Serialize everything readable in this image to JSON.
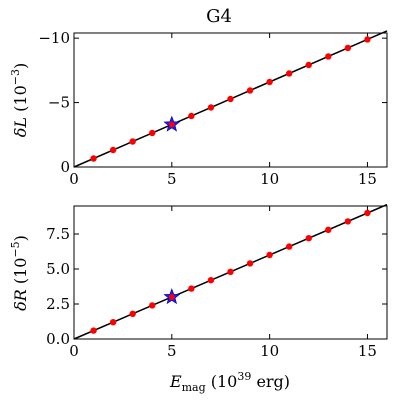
{
  "chart_data": [
    {
      "type": "scatter",
      "title": "G4",
      "ylabel": {
        "symbol": "δL",
        "scale": "10",
        "exponent": "−3"
      },
      "xlabel": "",
      "xlim": [
        0,
        16
      ],
      "ylim": [
        0,
        -10.4
      ],
      "y_inverted": true,
      "grid": false,
      "x_ticks": [
        0,
        5,
        10,
        15
      ],
      "x_tick_labels": [
        "0",
        "5",
        "10",
        "15"
      ],
      "y_ticks": [
        0,
        -5,
        -10
      ],
      "y_tick_labels": [
        "0",
        "−5",
        "−10"
      ],
      "series": [
        {
          "marker": "red-dot",
          "x": [
            1,
            2,
            3,
            4,
            5,
            6,
            7,
            8,
            9,
            10,
            11,
            12,
            13,
            14,
            15
          ],
          "y": [
            -0.66,
            -1.32,
            -1.98,
            -2.64,
            -3.3,
            -3.96,
            -4.62,
            -5.28,
            -5.94,
            -6.6,
            -7.26,
            -7.92,
            -8.58,
            -9.24,
            -9.9
          ]
        },
        {
          "marker": "blue-star",
          "x": [
            5
          ],
          "y": [
            -3.3
          ]
        },
        {
          "marker": "black-line",
          "x": [
            0,
            16
          ],
          "y": [
            0,
            -10.56
          ]
        }
      ]
    },
    {
      "type": "scatter",
      "title": "",
      "ylabel": {
        "symbol": "δR",
        "scale": "10",
        "exponent": "−5"
      },
      "xlabel": {
        "symbol": "E",
        "subscript": "mag",
        "scale": "10",
        "exponent": "39",
        "unit": "erg"
      },
      "xlim": [
        0,
        16
      ],
      "ylim": [
        0,
        9.5
      ],
      "grid": false,
      "x_ticks": [
        0,
        5,
        10,
        15
      ],
      "x_tick_labels": [
        "0",
        "5",
        "10",
        "15"
      ],
      "y_ticks": [
        0,
        2.5,
        5.0,
        7.5
      ],
      "y_tick_labels": [
        "0.0",
        "2.5",
        "5.0",
        "7.5"
      ],
      "series": [
        {
          "marker": "red-dot",
          "x": [
            1,
            2,
            3,
            4,
            5,
            6,
            7,
            8,
            9,
            10,
            11,
            12,
            13,
            14,
            15
          ],
          "y": [
            0.6,
            1.2,
            1.8,
            2.4,
            3.0,
            3.6,
            4.2,
            4.8,
            5.4,
            6.0,
            6.6,
            7.2,
            7.8,
            8.4,
            9.0
          ]
        },
        {
          "marker": "blue-star",
          "x": [
            5
          ],
          "y": [
            3.0
          ]
        },
        {
          "marker": "black-line",
          "x": [
            0,
            16
          ],
          "y": [
            0,
            9.6
          ]
        }
      ]
    }
  ]
}
